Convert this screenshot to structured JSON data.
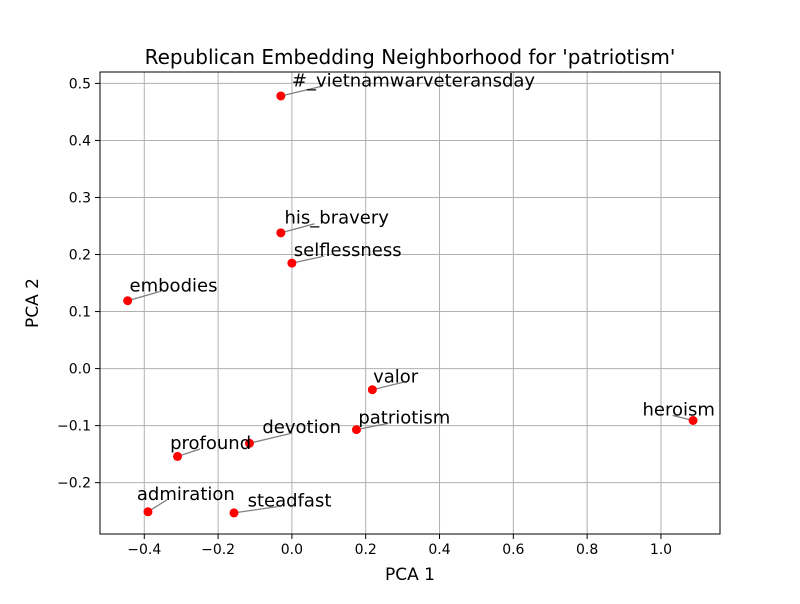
{
  "chart_data": {
    "type": "scatter",
    "title": "Republican Embedding Neighborhood for 'patriotism'",
    "xlabel": "PCA 1",
    "ylabel": "PCA 2",
    "xlim": [
      -0.52,
      1.16
    ],
    "ylim": [
      -0.29,
      0.52
    ],
    "xticks": [
      -0.4,
      -0.2,
      0.0,
      0.2,
      0.4,
      0.6,
      0.8,
      1.0
    ],
    "xtick_labels": [
      "−0.4",
      "−0.2",
      "0.0",
      "0.2",
      "0.4",
      "0.6",
      "0.8",
      "1.0"
    ],
    "yticks": [
      -0.2,
      -0.1,
      0.0,
      0.1,
      0.2,
      0.3,
      0.4,
      0.5
    ],
    "ytick_labels": [
      "−0.2",
      "−0.1",
      "0.0",
      "0.1",
      "0.2",
      "0.3",
      "0.4",
      "0.5"
    ],
    "grid": true,
    "marker_color": "#ff0000",
    "leader_color": "#808080",
    "points": [
      {
        "label": "#_vietnamwarveteransday",
        "x": -0.03,
        "y": 0.478,
        "lx": 0.0,
        "ly": 0.495
      },
      {
        "label": "his_bravery",
        "x": -0.03,
        "y": 0.238,
        "lx": -0.02,
        "ly": 0.254
      },
      {
        "label": "selflessness",
        "x": 0.0,
        "y": 0.185,
        "lx": 0.005,
        "ly": 0.197
      },
      {
        "label": "embodies",
        "x": -0.445,
        "y": 0.119,
        "lx": -0.44,
        "ly": 0.135
      },
      {
        "label": "valor",
        "x": 0.218,
        "y": -0.037,
        "lx": 0.22,
        "ly": -0.024
      },
      {
        "label": "patriotism",
        "x": 0.175,
        "y": -0.107,
        "lx": 0.18,
        "ly": -0.096
      },
      {
        "label": "heroism",
        "x": 1.087,
        "y": -0.091,
        "lx": 0.95,
        "ly": -0.082
      },
      {
        "label": "devotion",
        "x": -0.115,
        "y": -0.131,
        "lx": -0.08,
        "ly": -0.113
      },
      {
        "label": "profound",
        "x": -0.31,
        "y": -0.154,
        "lx": -0.33,
        "ly": -0.141
      },
      {
        "label": "admiration",
        "x": -0.39,
        "y": -0.251,
        "lx": -0.42,
        "ly": -0.23
      },
      {
        "label": "steadfast",
        "x": -0.157,
        "y": -0.253,
        "lx": -0.12,
        "ly": -0.242
      }
    ]
  }
}
